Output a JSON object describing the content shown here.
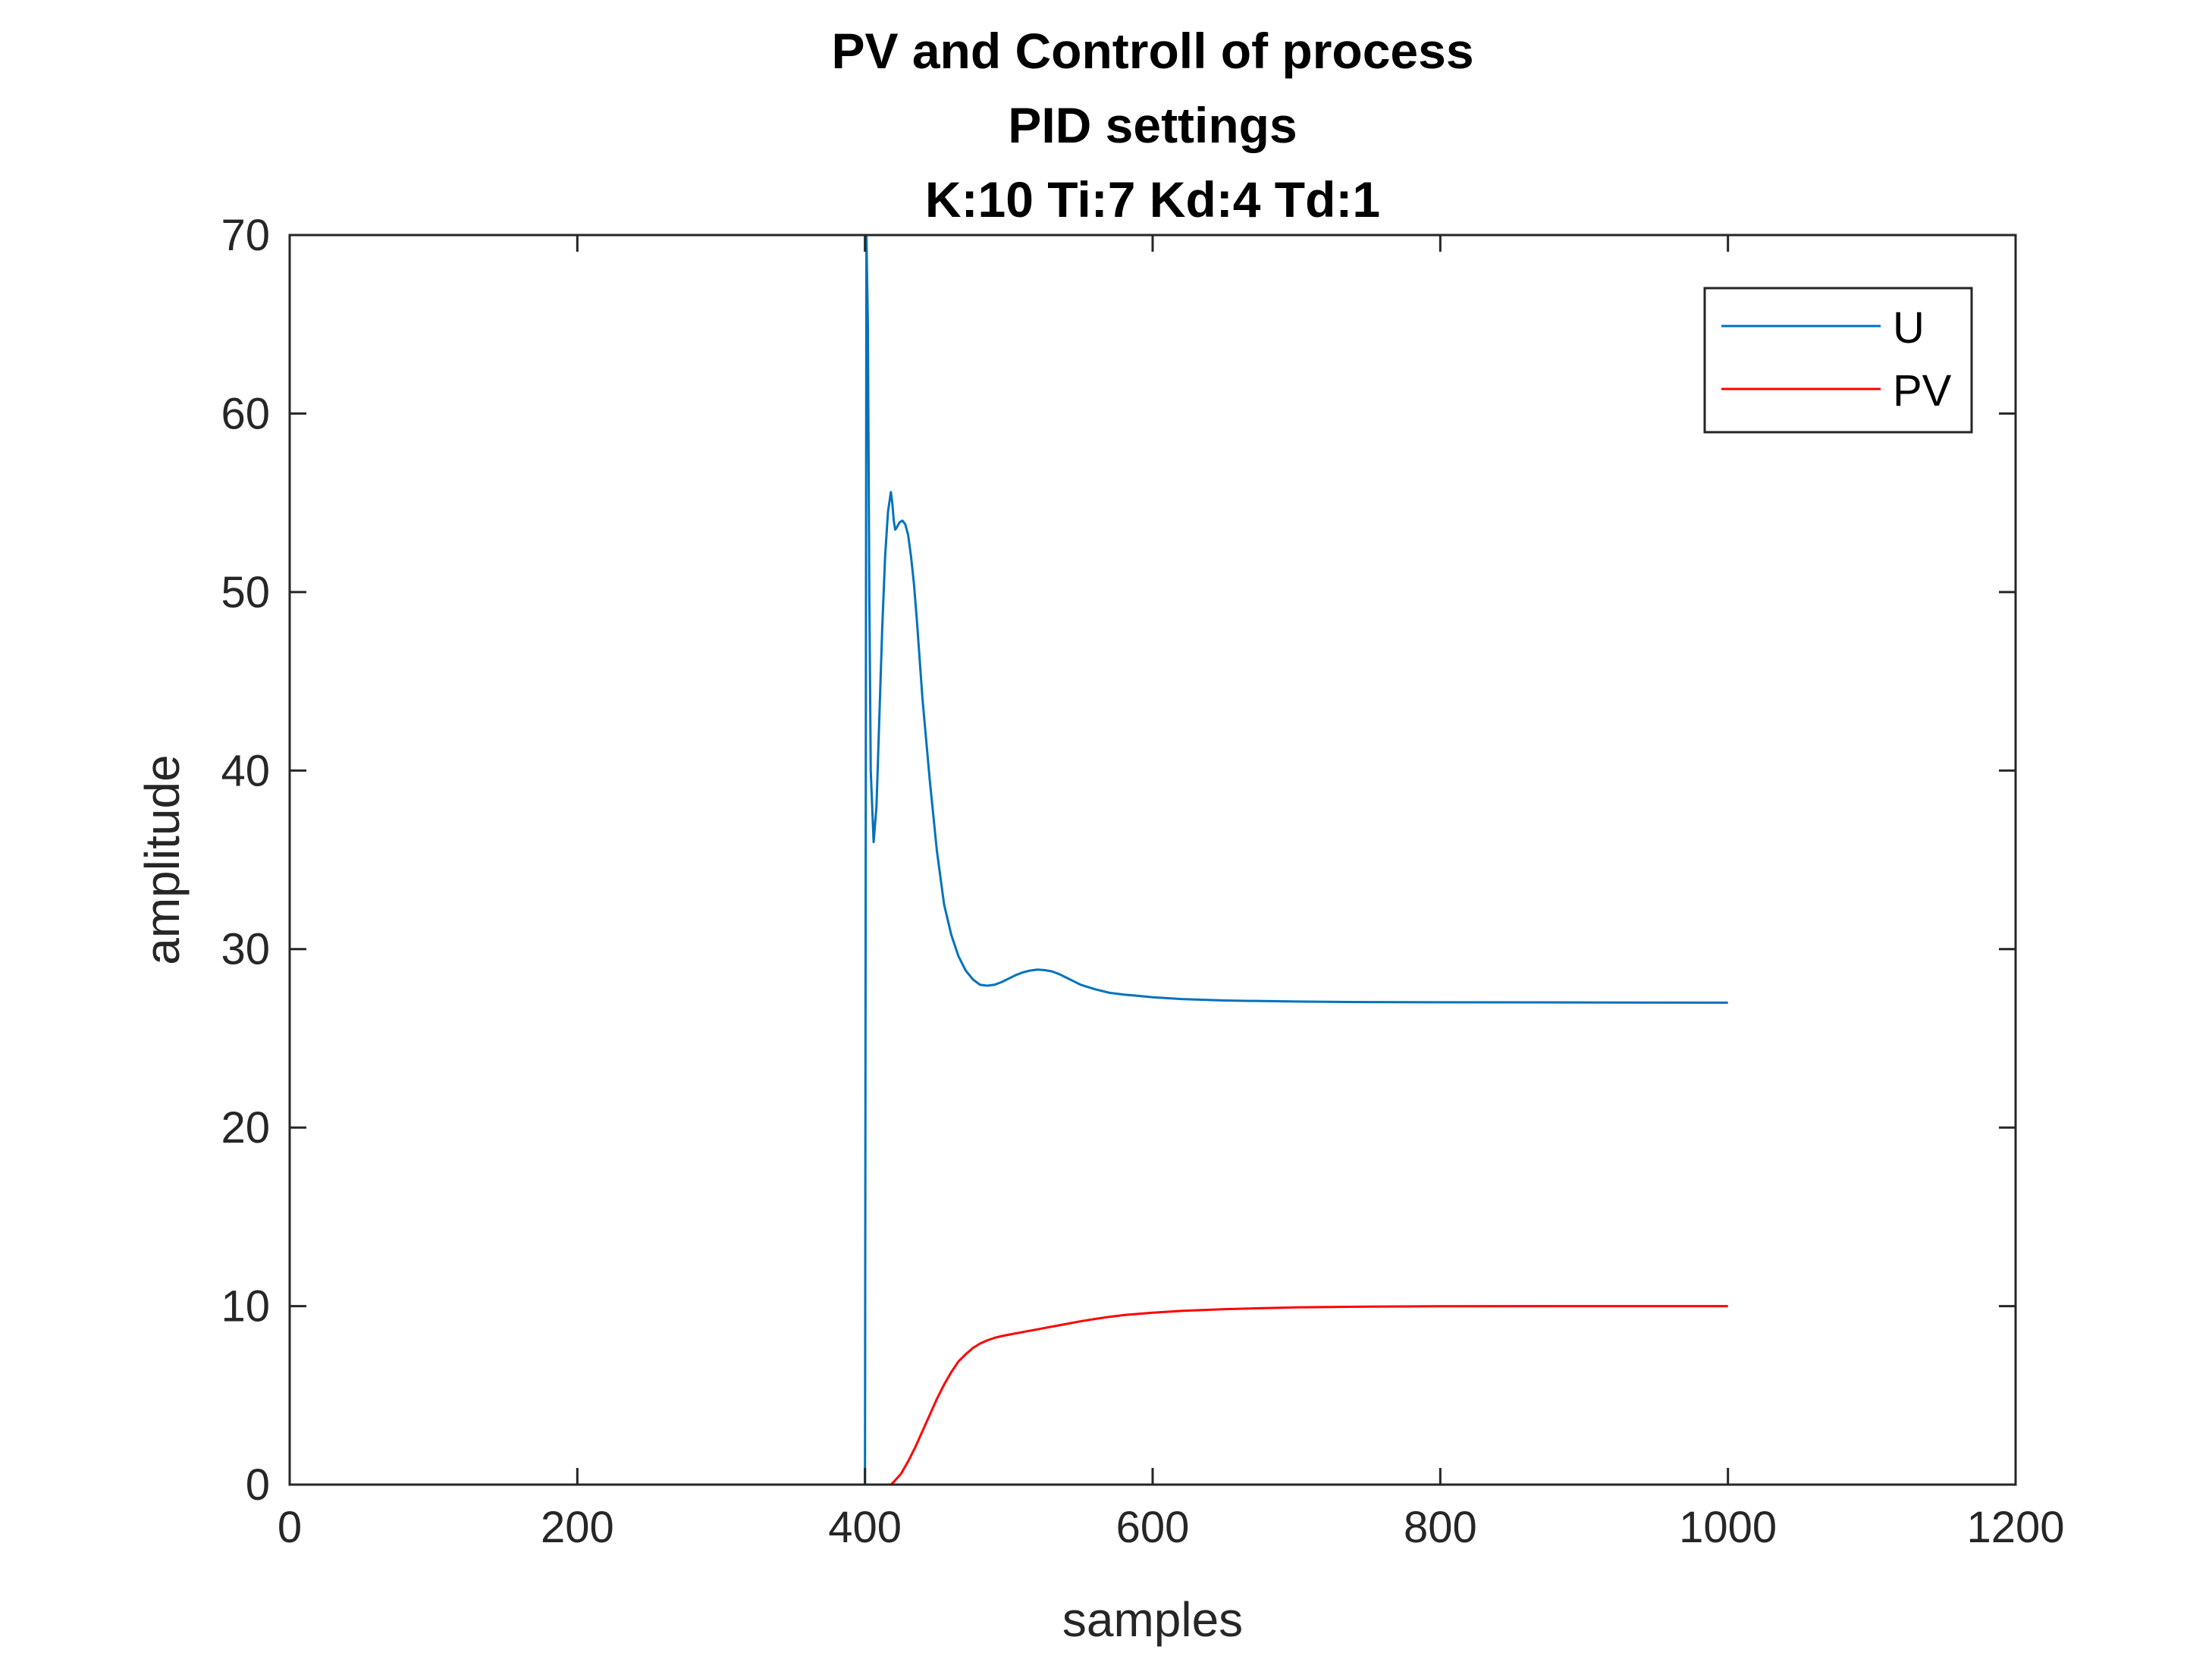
{
  "chart_data": {
    "type": "line",
    "title": [
      "PV and Controll of process",
      "PID settings",
      "K:10  Ti:7  Kd:4  Td:1"
    ],
    "xlabel": "samples",
    "ylabel": "amplitude",
    "xlim": [
      0,
      1200
    ],
    "ylim": [
      0,
      70
    ],
    "xticks": [
      "0",
      "200",
      "400",
      "600",
      "800",
      "1000",
      "1200"
    ],
    "yticks": [
      "0",
      "10",
      "20",
      "30",
      "40",
      "50",
      "60",
      "70"
    ],
    "xtick_values": [
      0,
      200,
      400,
      600,
      800,
      1000,
      1200
    ],
    "ytick_values": [
      0,
      10,
      20,
      30,
      40,
      50,
      60,
      70
    ],
    "grid": false,
    "legend": "top-right",
    "series": [
      {
        "name": "U",
        "color": "#0072BD",
        "x": [
          0,
          399,
          400,
          401,
          402,
          403,
          404,
          406,
          408,
          410,
          412,
          414,
          416,
          418,
          419,
          420,
          421,
          422,
          424,
          426,
          428,
          430,
          432,
          434,
          436,
          440,
          445,
          450,
          455,
          460,
          465,
          470,
          475,
          480,
          485,
          490,
          495,
          500,
          505,
          510,
          515,
          520,
          525,
          530,
          535,
          540,
          545,
          550,
          560,
          570,
          580,
          590,
          600,
          620,
          650,
          700,
          750,
          800,
          900,
          1000
        ],
        "y": [
          0,
          0,
          0,
          70,
          65,
          50,
          40,
          36,
          38,
          43,
          48,
          52,
          54.5,
          55.6,
          55,
          54,
          53.5,
          53.6,
          53.9,
          54,
          53.8,
          53.2,
          52,
          50.5,
          48.5,
          44,
          39.5,
          35.5,
          32.5,
          30.8,
          29.6,
          28.8,
          28.3,
          28,
          27.95,
          28,
          28.15,
          28.35,
          28.55,
          28.7,
          28.8,
          28.85,
          28.82,
          28.75,
          28.6,
          28.4,
          28.2,
          28,
          27.75,
          27.55,
          27.45,
          27.38,
          27.3,
          27.2,
          27.12,
          27.06,
          27.03,
          27.02,
          27.01,
          27
        ]
      },
      {
        "name": "PV",
        "color": "#FF0000",
        "x": [
          0,
          400,
          418,
          420,
          425,
          430,
          435,
          440,
          445,
          450,
          455,
          460,
          465,
          470,
          475,
          480,
          485,
          490,
          495,
          500,
          510,
          520,
          530,
          540,
          550,
          560,
          570,
          580,
          600,
          620,
          650,
          700,
          750,
          800,
          900,
          1000
        ],
        "y": [
          0,
          0,
          0,
          0.15,
          0.6,
          1.3,
          2.1,
          3,
          3.9,
          4.8,
          5.6,
          6.3,
          6.9,
          7.3,
          7.65,
          7.9,
          8.08,
          8.22,
          8.32,
          8.4,
          8.55,
          8.7,
          8.85,
          9,
          9.15,
          9.28,
          9.4,
          9.5,
          9.63,
          9.73,
          9.83,
          9.93,
          9.97,
          9.99,
          10,
          10
        ]
      }
    ]
  }
}
